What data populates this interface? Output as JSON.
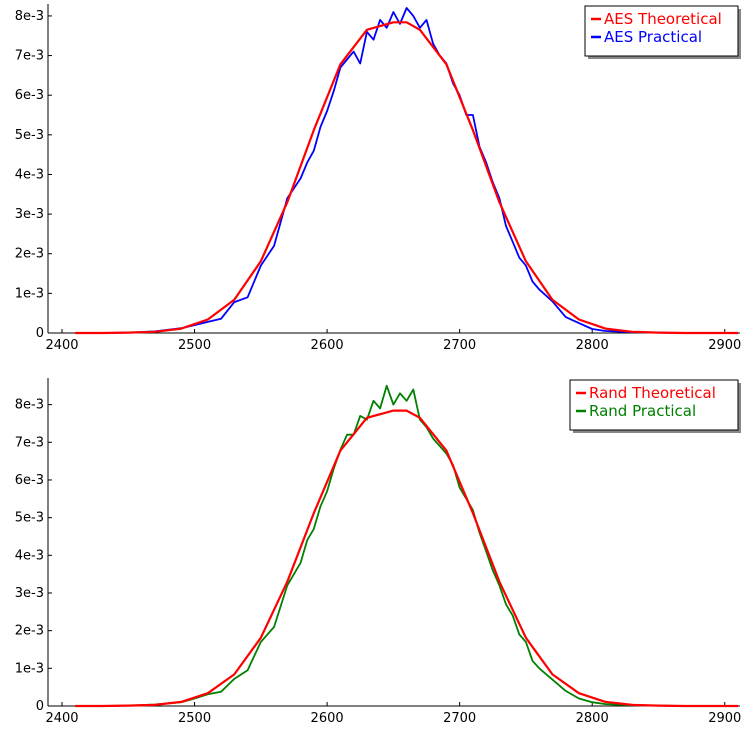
{
  "colors": {
    "aes_theoretical": "#ff0000",
    "aes_practical": "#0000ff",
    "rand_theoretical": "#ff0000",
    "rand_practical": "#008000"
  },
  "chart_data": [
    {
      "type": "line",
      "title": "",
      "xlabel": "",
      "ylabel": "",
      "xlim": [
        2400,
        2910
      ],
      "ylim": [
        0,
        0.0082
      ],
      "xticks": [
        2400,
        2500,
        2600,
        2700,
        2800,
        2900
      ],
      "xtick_labels": [
        "2400",
        "2500",
        "2600",
        "2700",
        "2800",
        "2900"
      ],
      "yticks": [
        0,
        0.001,
        0.002,
        0.003,
        0.004,
        0.005,
        0.006,
        0.007,
        0.008
      ],
      "ytick_labels": [
        "0",
        "1e-3",
        "2e-3",
        "3e-3",
        "4e-3",
        "5e-3",
        "6e-3",
        "7e-3",
        "8e-3"
      ],
      "grid": false,
      "legend_position": "top-right",
      "legend": [
        "AES Theoretical",
        "AES Practical"
      ],
      "series": [
        {
          "name": "AES Theoretical",
          "color": "#ff0000",
          "x": [
            2410,
            2430,
            2450,
            2470,
            2490,
            2510,
            2530,
            2550,
            2570,
            2590,
            2610,
            2630,
            2650,
            2660,
            2670,
            2690,
            2710,
            2730,
            2750,
            2770,
            2790,
            2810,
            2830,
            2850,
            2870,
            2890,
            2910
          ],
          "y": [
            0,
            0,
            1e-05,
            3e-05,
            0.00011,
            0.00034,
            0.00084,
            0.00181,
            0.0033,
            0.00512,
            0.00678,
            0.00765,
            0.00784,
            0.00784,
            0.00765,
            0.00678,
            0.00512,
            0.0033,
            0.00181,
            0.00084,
            0.00034,
            0.00011,
            3e-05,
            1e-05,
            0,
            0,
            0
          ]
        },
        {
          "name": "AES Practical",
          "color": "#0000ff",
          "x": [
            2410,
            2430,
            2450,
            2470,
            2490,
            2500,
            2510,
            2520,
            2530,
            2540,
            2550,
            2560,
            2570,
            2580,
            2585,
            2590,
            2595,
            2600,
            2605,
            2610,
            2615,
            2620,
            2625,
            2630,
            2635,
            2640,
            2645,
            2650,
            2655,
            2660,
            2665,
            2670,
            2675,
            2680,
            2685,
            2690,
            2695,
            2700,
            2705,
            2710,
            2715,
            2720,
            2725,
            2730,
            2735,
            2740,
            2745,
            2750,
            2755,
            2760,
            2770,
            2780,
            2790,
            2800,
            2810,
            2830,
            2850,
            2870,
            2890,
            2910
          ],
          "y": [
            0,
            0,
            1e-05,
            4e-05,
            0.00012,
            0.0002,
            0.00028,
            0.00036,
            0.00078,
            0.0009,
            0.0017,
            0.0022,
            0.0034,
            0.0039,
            0.0043,
            0.0046,
            0.0052,
            0.0056,
            0.0061,
            0.0067,
            0.0069,
            0.0071,
            0.0068,
            0.0076,
            0.0074,
            0.0079,
            0.0077,
            0.0081,
            0.0078,
            0.0082,
            0.008,
            0.0077,
            0.0079,
            0.0073,
            0.007,
            0.0068,
            0.0063,
            0.006,
            0.0055,
            0.0055,
            0.0047,
            0.0043,
            0.0038,
            0.0034,
            0.0027,
            0.0023,
            0.0019,
            0.0017,
            0.0013,
            0.0011,
            0.0008,
            0.0004,
            0.00025,
            0.0001,
            5e-05,
            2e-05,
            1e-05,
            0,
            0,
            0
          ]
        }
      ]
    },
    {
      "type": "line",
      "title": "",
      "xlabel": "",
      "ylabel": "",
      "xlim": [
        2400,
        2910
      ],
      "ylim": [
        0,
        0.0086
      ],
      "xticks": [
        2400,
        2500,
        2600,
        2700,
        2800,
        2900
      ],
      "xtick_labels": [
        "2400",
        "2500",
        "2600",
        "2700",
        "2800",
        "2900"
      ],
      "yticks": [
        0,
        0.001,
        0.002,
        0.003,
        0.004,
        0.005,
        0.006,
        0.007,
        0.008
      ],
      "ytick_labels": [
        "0",
        "1e-3",
        "2e-3",
        "3e-3",
        "4e-3",
        "5e-3",
        "6e-3",
        "7e-3",
        "8e-3"
      ],
      "grid": false,
      "legend_position": "top-right",
      "legend": [
        "Rand Theoretical",
        "Rand Practical"
      ],
      "series": [
        {
          "name": "Rand Theoretical",
          "color": "#ff0000",
          "x": [
            2410,
            2430,
            2450,
            2470,
            2490,
            2510,
            2530,
            2550,
            2570,
            2590,
            2610,
            2630,
            2650,
            2660,
            2670,
            2690,
            2710,
            2730,
            2750,
            2770,
            2790,
            2810,
            2830,
            2850,
            2870,
            2890,
            2910
          ],
          "y": [
            0,
            0,
            1e-05,
            3e-05,
            0.00011,
            0.00034,
            0.00084,
            0.00181,
            0.0033,
            0.00512,
            0.00678,
            0.00765,
            0.00784,
            0.00784,
            0.00765,
            0.00678,
            0.00512,
            0.0033,
            0.00181,
            0.00084,
            0.00034,
            0.00011,
            3e-05,
            1e-05,
            0,
            0,
            0
          ]
        },
        {
          "name": "Rand Practical",
          "color": "#008000",
          "x": [
            2410,
            2430,
            2450,
            2470,
            2490,
            2500,
            2510,
            2520,
            2530,
            2540,
            2550,
            2560,
            2570,
            2580,
            2585,
            2590,
            2595,
            2600,
            2605,
            2610,
            2615,
            2620,
            2625,
            2630,
            2635,
            2640,
            2645,
            2650,
            2655,
            2660,
            2665,
            2670,
            2675,
            2680,
            2685,
            2690,
            2695,
            2700,
            2705,
            2710,
            2715,
            2720,
            2725,
            2730,
            2735,
            2740,
            2745,
            2750,
            2755,
            2760,
            2770,
            2780,
            2790,
            2800,
            2810,
            2830,
            2850,
            2870,
            2890,
            2910
          ],
          "y": [
            0,
            0,
            1e-05,
            4e-05,
            0.0001,
            0.0002,
            0.00031,
            0.00038,
            0.00072,
            0.00095,
            0.0017,
            0.0021,
            0.0032,
            0.0038,
            0.0044,
            0.0047,
            0.0053,
            0.0057,
            0.0063,
            0.0068,
            0.0072,
            0.0072,
            0.0077,
            0.0076,
            0.0081,
            0.0079,
            0.0085,
            0.008,
            0.0083,
            0.0081,
            0.0084,
            0.0076,
            0.0074,
            0.0071,
            0.0069,
            0.0067,
            0.0064,
            0.0058,
            0.0055,
            0.0052,
            0.0046,
            0.0041,
            0.0036,
            0.0032,
            0.0027,
            0.0024,
            0.0019,
            0.0017,
            0.0012,
            0.001,
            0.0007,
            0.0004,
            0.0002,
            0.0001,
            5e-05,
            2e-05,
            1e-05,
            0,
            0,
            0
          ]
        }
      ]
    }
  ]
}
